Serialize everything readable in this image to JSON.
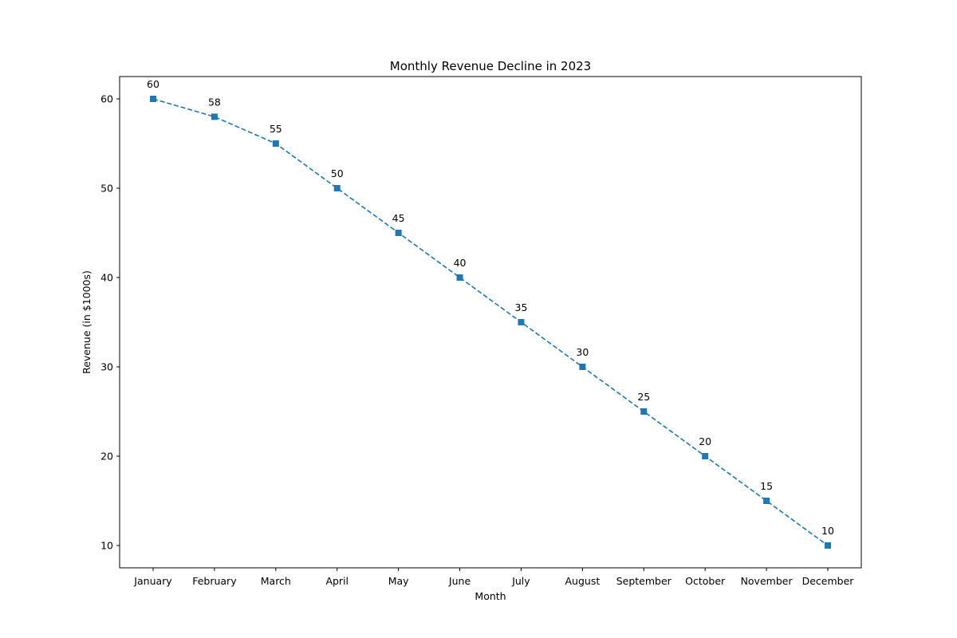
{
  "chart_data": {
    "type": "line",
    "title": "Monthly Revenue Decline in 2023",
    "xlabel": "Month",
    "ylabel": "Revenue (in $1000s)",
    "categories": [
      "January",
      "February",
      "March",
      "April",
      "May",
      "June",
      "July",
      "August",
      "September",
      "October",
      "November",
      "December"
    ],
    "values": [
      60,
      58,
      55,
      50,
      45,
      40,
      35,
      30,
      25,
      20,
      15,
      10
    ],
    "data_labels": [
      "60",
      "58",
      "55",
      "50",
      "45",
      "40",
      "35",
      "30",
      "25",
      "20",
      "15",
      "10"
    ],
    "ylim": [
      7.5,
      62.5
    ],
    "yticks": [
      10,
      20,
      30,
      40,
      50,
      60
    ],
    "ytick_labels": [
      "10",
      "20",
      "30",
      "40",
      "50",
      "60"
    ],
    "line_style": "dashed",
    "marker": "square",
    "grid": false,
    "color": "#1f77b4"
  }
}
